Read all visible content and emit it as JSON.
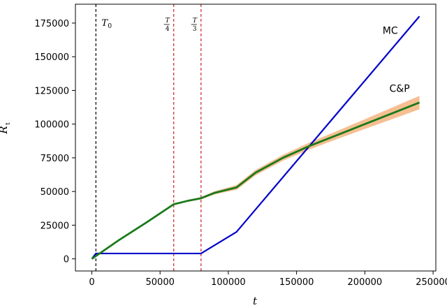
{
  "chart_data": {
    "type": "line",
    "xlabel": "t",
    "ylabel_main": "R",
    "ylabel_sub": "t",
    "xlim": [
      -12000,
      252000
    ],
    "ylim": [
      -9000,
      189000
    ],
    "x_ticks": [
      0,
      50000,
      100000,
      150000,
      200000,
      250000
    ],
    "y_ticks": [
      0,
      25000,
      50000,
      75000,
      100000,
      125000,
      150000,
      175000
    ],
    "grid": false,
    "series": [
      {
        "name": "MC",
        "color": "#0000cc",
        "x": [
          0,
          3000,
          80000,
          106000,
          240000
        ],
        "y": [
          0,
          4000,
          4000,
          20000,
          180000
        ]
      },
      {
        "name": "C&P",
        "color": "#1a7a1a",
        "band_color": "#f5b47f",
        "x": [
          0,
          20000,
          40000,
          60000,
          70000,
          80000,
          90000,
          100000,
          106000,
          120000,
          140000,
          160000,
          180000,
          200000,
          220000,
          240000
        ],
        "y": [
          0,
          14000,
          27000,
          40500,
          43000,
          45000,
          49000,
          51500,
          53000,
          64000,
          75000,
          84000,
          92000,
          100000,
          108000,
          116000
        ],
        "band_halfwidth": [
          0,
          0,
          0,
          0,
          600,
          800,
          1200,
          1500,
          1800,
          2000,
          2200,
          2600,
          3000,
          3600,
          4300,
          5000
        ]
      }
    ],
    "vlines": [
      {
        "x": 3000,
        "color": "#000000",
        "label_main": "T",
        "label_sub": "0",
        "label_kind": "subscript"
      },
      {
        "x": 60000,
        "color": "#cc2222",
        "label_main": "T",
        "label_sub": "4",
        "label_kind": "fraction"
      },
      {
        "x": 80000,
        "color": "#cc2222",
        "label_main": "T",
        "label_sub": "3",
        "label_kind": "fraction"
      }
    ],
    "series_labels": [
      {
        "text": "MC",
        "x": 213000,
        "y": 167000
      },
      {
        "text": "C&P",
        "x": 218000,
        "y": 124000
      }
    ]
  }
}
